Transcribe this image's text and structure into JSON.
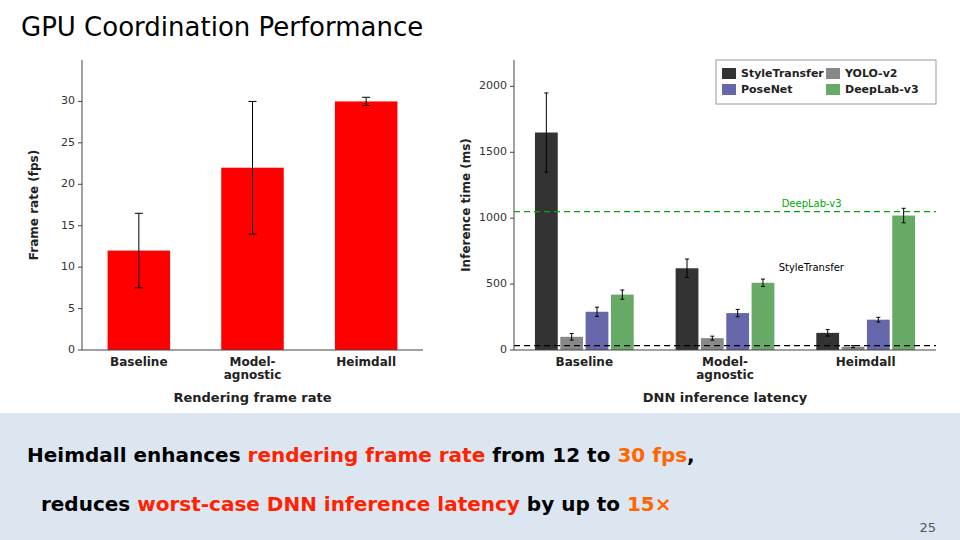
{
  "title": "GPU Coordination Performance",
  "annotations": [
    [
      {
        "text": "Heimdall enhances ",
        "color": "#000000"
      },
      {
        "text": "rendering frame rate",
        "color": "#ff2200"
      },
      {
        "text": " from 12 to ",
        "color": "#000000"
      },
      {
        "text": "30 fps",
        "color": "#ff6600"
      },
      {
        "text": ",",
        "color": "#000000"
      }
    ],
    [
      {
        "text": "  reduces ",
        "color": "#000000"
      },
      {
        "text": "worst-case DNN inference latency",
        "color": "#ff2200"
      },
      {
        "text": " by up to ",
        "color": "#000000"
      },
      {
        "text": "15×",
        "color": "#ff6600"
      }
    ]
  ],
  "page_number": "25",
  "chart_data": [
    {
      "type": "bar",
      "categories": [
        "Baseline",
        "Model-\nagnostic",
        "Heimdall"
      ],
      "values": [
        12,
        22,
        30
      ],
      "errors": [
        4.5,
        8,
        0.5
      ],
      "color": "#ff0000",
      "ylabel": "Frame rate (fps)",
      "xlabel": "Rendering frame rate",
      "ylim": [
        0,
        35
      ],
      "yticks": [
        0,
        5,
        10,
        15,
        20,
        25,
        30
      ],
      "grid": false
    },
    {
      "type": "bar",
      "categories": [
        "Baseline",
        "Model-\nagnostic",
        "Heimdall"
      ],
      "series": [
        {
          "name": "StyleTransfer",
          "color": "#333333",
          "values": [
            1650,
            620,
            130
          ],
          "errors": [
            300,
            70,
            25
          ]
        },
        {
          "name": "YOLO-v2",
          "color": "#888888",
          "values": [
            100,
            90,
            25
          ],
          "errors": [
            25,
            15,
            8
          ]
        },
        {
          "name": "PoseNet",
          "color": "#6666aa",
          "values": [
            290,
            280,
            230
          ],
          "errors": [
            35,
            28,
            18
          ]
        },
        {
          "name": "DeepLab-v3",
          "color": "#66aa66",
          "values": [
            420,
            510,
            1020
          ],
          "errors": [
            35,
            28,
            55
          ]
        }
      ],
      "reference_lines": [
        {
          "value": 1050,
          "color": "#00aa00",
          "label": "DeepLab-v3",
          "line_style": "dashed"
        },
        {
          "value": 33,
          "color": "#000000",
          "line_style": "dashed"
        }
      ],
      "annotations": [
        {
          "text": "StyleTransfer"
        }
      ],
      "ylabel": "Inference time (ms)",
      "xlabel": "DNN inference latency",
      "ylim": [
        0,
        2200
      ],
      "yticks": [
        0,
        500,
        1000,
        1500,
        2000
      ],
      "legend": "upper right",
      "grid": false
    }
  ]
}
